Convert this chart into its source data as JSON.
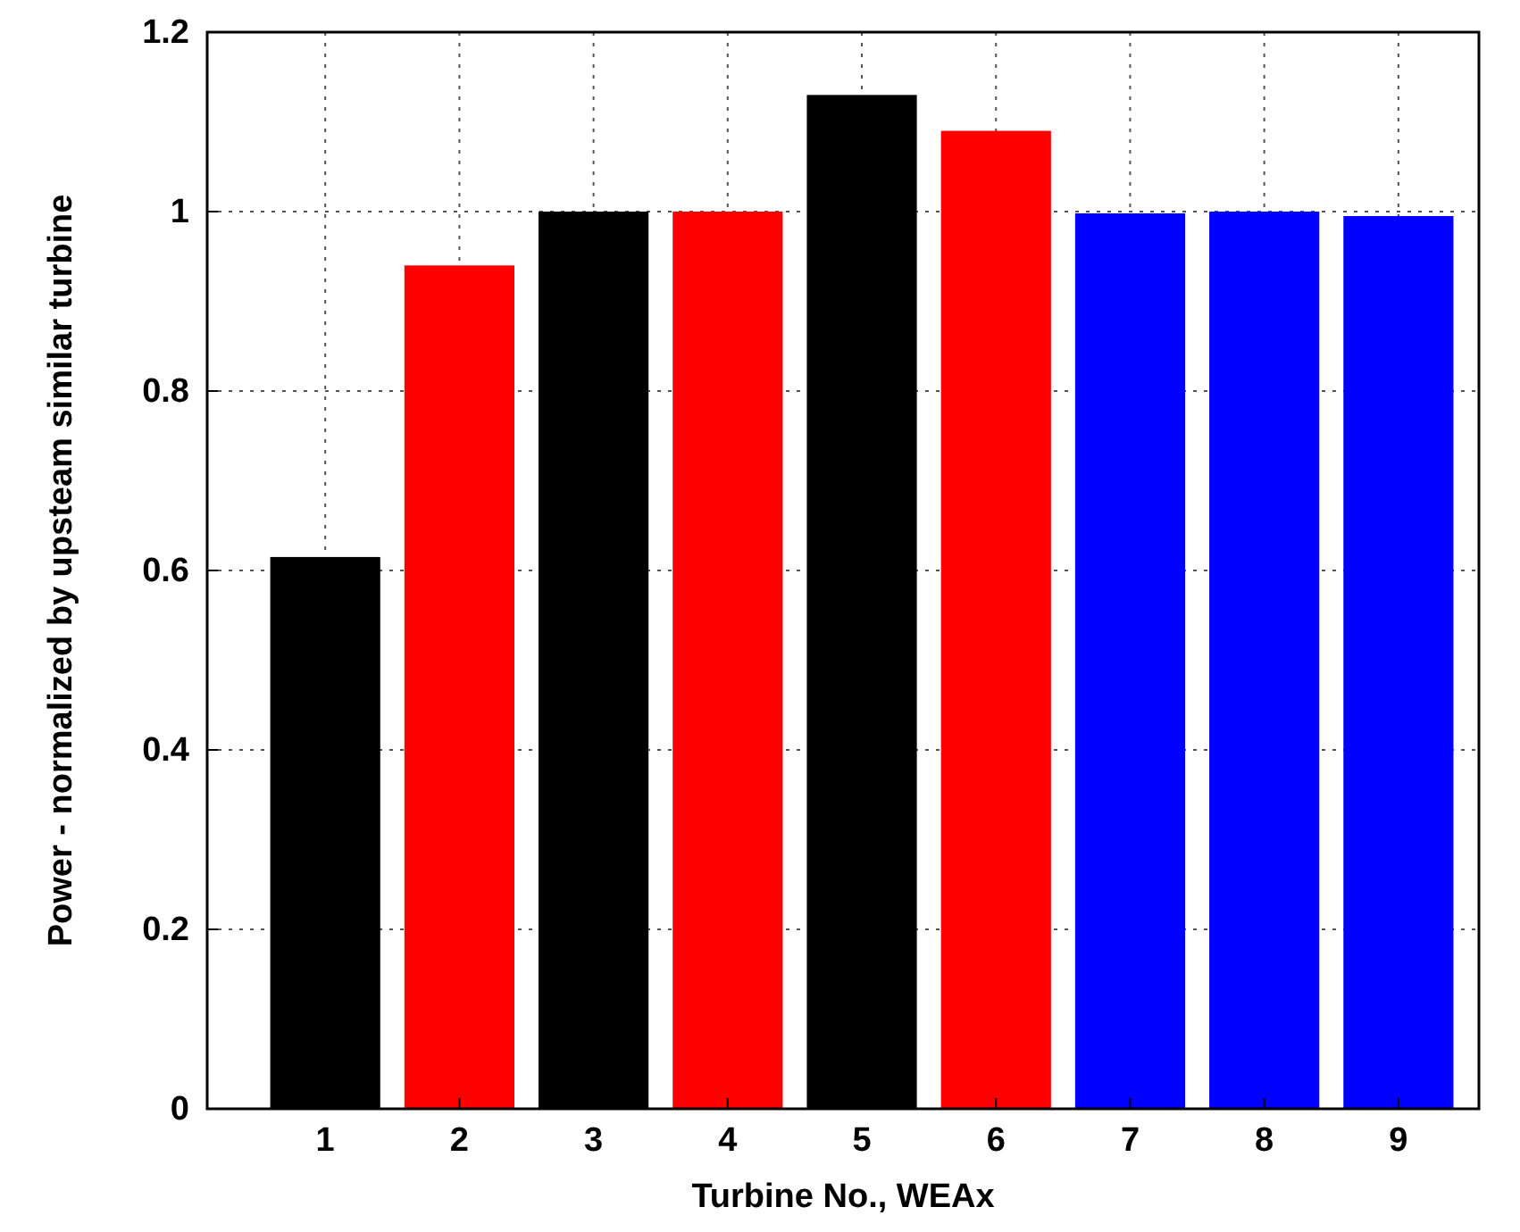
{
  "chart_data": {
    "type": "bar",
    "xlabel": "Turbine No., WEAx",
    "ylabel": "Power - normalized by upsteam similar turbine",
    "categories": [
      "1",
      "2",
      "3",
      "4",
      "5",
      "6",
      "7",
      "8",
      "9"
    ],
    "values": [
      0.615,
      0.94,
      1.0,
      1.0,
      1.13,
      1.09,
      0.998,
      1.0,
      0.995
    ],
    "colors": [
      "#000000",
      "#ff0000",
      "#000000",
      "#ff0000",
      "#000000",
      "#ff0000",
      "#0000ff",
      "#0000ff",
      "#0000ff"
    ],
    "ylim": [
      0,
      1.2
    ],
    "yticks": [
      0,
      0.2,
      0.4,
      0.6,
      0.8,
      1,
      1.2
    ],
    "grid": true
  }
}
